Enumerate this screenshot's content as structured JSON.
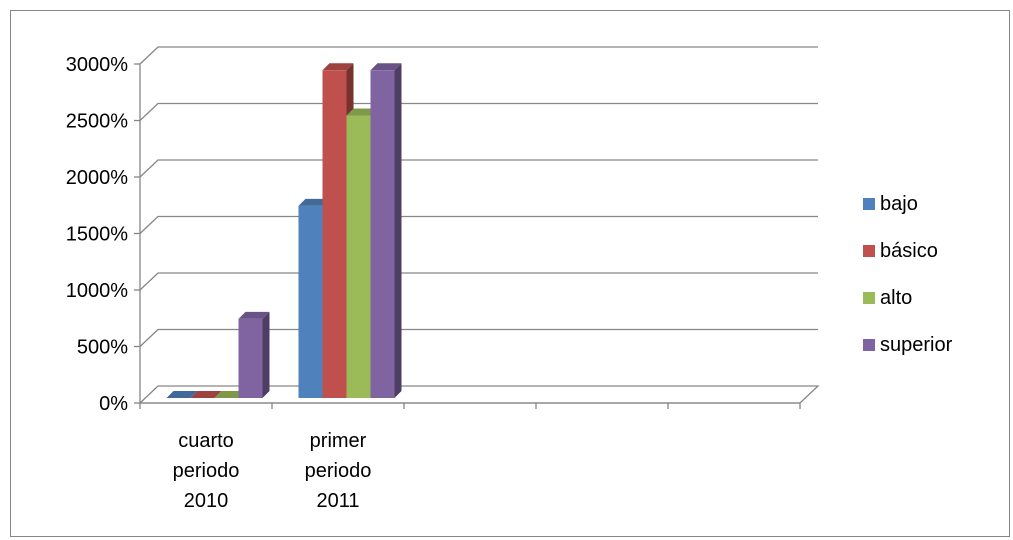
{
  "chart_data": {
    "type": "bar",
    "style": "3d-clustered-column",
    "categories": [
      [
        "cuarto",
        "periodo",
        "2010"
      ],
      [
        "primer",
        "periodo",
        "2011"
      ],
      [],
      [],
      []
    ],
    "series": [
      {
        "name": "bajo",
        "color": "#4F81BD",
        "values": [
          0,
          1700,
          null,
          null,
          null
        ]
      },
      {
        "name": "básico",
        "color": "#C0504D",
        "values": [
          0,
          2900,
          null,
          null,
          null
        ]
      },
      {
        "name": "alto",
        "color": "#9BBB59",
        "values": [
          0,
          2500,
          null,
          null,
          null
        ]
      },
      {
        "name": "superior",
        "color": "#8064A2",
        "values": [
          700,
          2900,
          null,
          null,
          null
        ]
      }
    ],
    "yticks": [
      "0%",
      "500%",
      "1000%",
      "1500%",
      "2000%",
      "2500%",
      "3000%"
    ],
    "ylim": [
      0,
      3000
    ],
    "grid": true,
    "legend_position": "right"
  }
}
